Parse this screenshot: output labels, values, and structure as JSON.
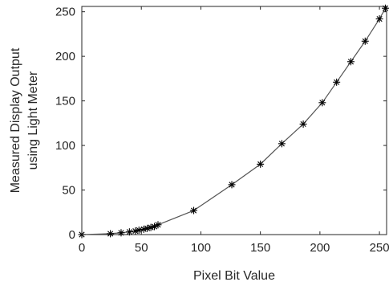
{
  "chart_data": {
    "type": "line",
    "title": "",
    "xlabel": "Pixel Bit Value",
    "ylabel_lines": [
      "Measured Display Output",
      "using Light Meter"
    ],
    "xlim": [
      0,
      256
    ],
    "ylim": [
      0,
      256
    ],
    "x_ticks": [
      0,
      50,
      100,
      150,
      200,
      250
    ],
    "y_ticks": [
      0,
      50,
      100,
      150,
      200,
      250
    ],
    "grid": false,
    "marker": "asterisk",
    "line_color": "#000000",
    "series": [
      {
        "x": [
          0,
          24,
          33,
          40,
          45,
          48,
          52,
          55,
          58,
          61,
          64,
          94,
          126,
          150,
          168,
          186,
          202,
          214,
          226,
          238,
          250,
          255
        ],
        "y": [
          0,
          1,
          2,
          3,
          4,
          5,
          6,
          7,
          8,
          9,
          11,
          27,
          56,
          79,
          102,
          124,
          148,
          171,
          194,
          217,
          242,
          254
        ]
      }
    ]
  }
}
